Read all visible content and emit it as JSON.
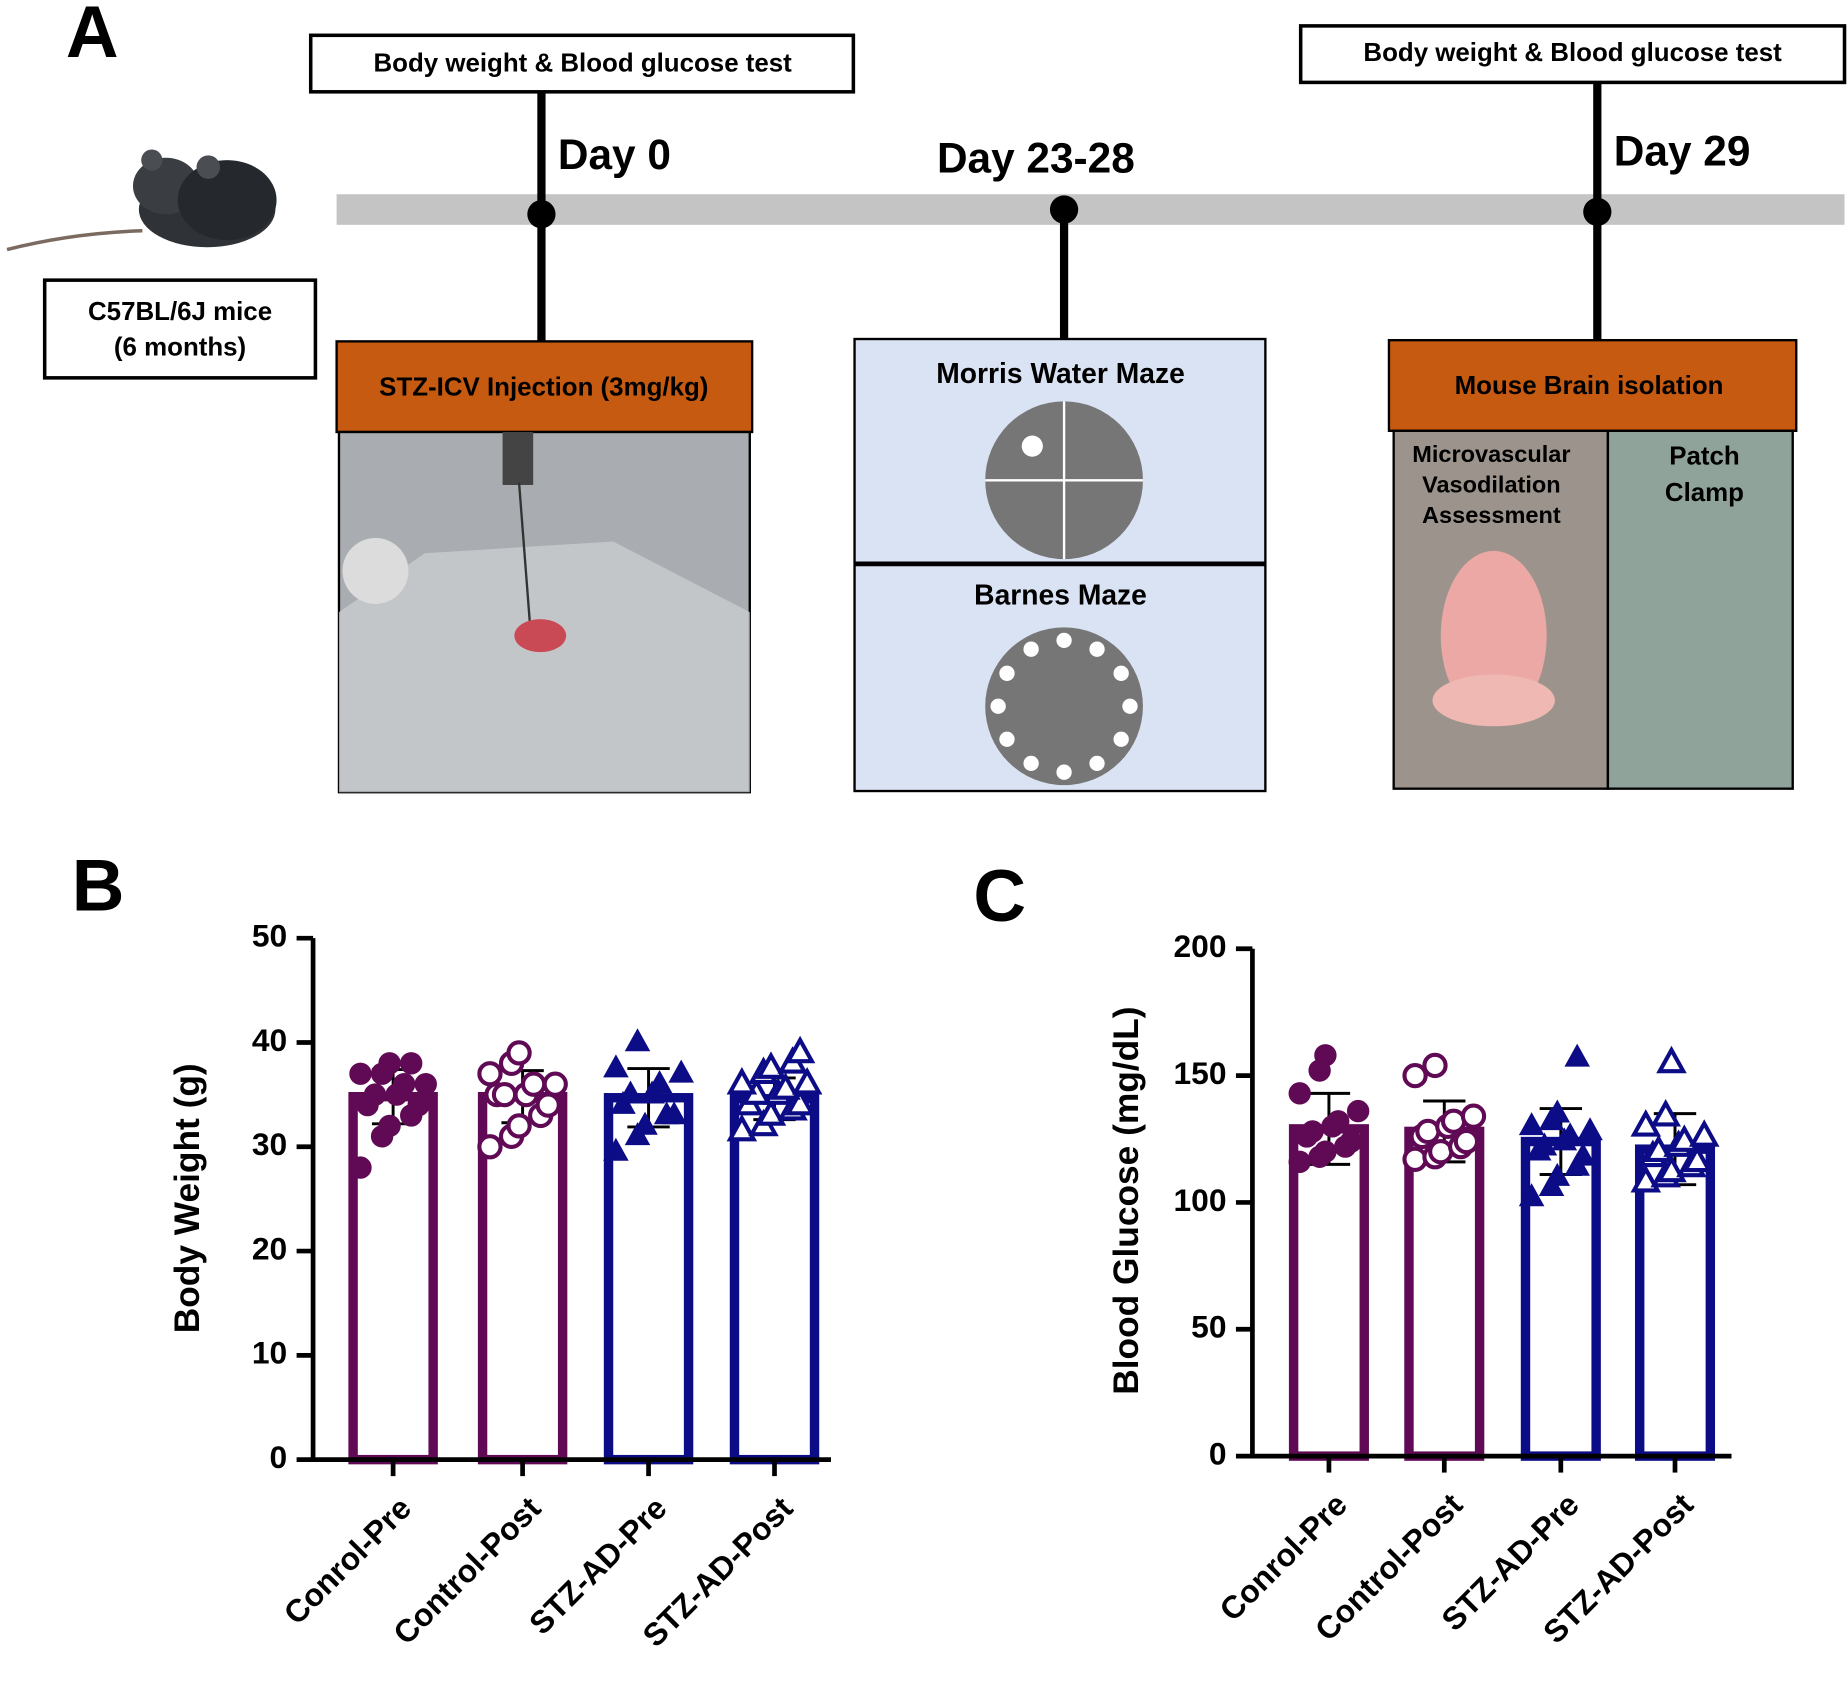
{
  "panel_a": {
    "label": "A",
    "mouse_box": [
      "C57BL/6J mice",
      "(6 months)"
    ],
    "test_box_1": "Body weight & Blood glucose test",
    "test_box_2": "Body weight & Blood glucose test",
    "day_0": "Day 0",
    "day_23": "Day 23-28",
    "day_29": "Day 29",
    "injection": "STZ-ICV Injection (3mg/kg)",
    "morris": "Morris Water Maze",
    "barnes": "Barnes Maze",
    "isolation": "Mouse Brain isolation",
    "vasodilation": [
      "Microvascular",
      "Vasodilation",
      "Assessment"
    ],
    "patch": [
      "Patch",
      "Clamp"
    ]
  },
  "chart_data": [
    {
      "type": "bar",
      "label": "B",
      "ylabel": "Body Weight (g)",
      "categories": [
        "Conrol-Pre",
        "Control-Post",
        "STZ-AD-Pre",
        "STZ-AD-Post"
      ],
      "values": [
        34.8,
        34.8,
        34.7,
        34.6
      ],
      "errors": [
        2.6,
        2.5,
        2.8,
        2.0
      ],
      "colors": [
        "#600a55",
        "#600a55",
        "#0c0c86",
        "#0c0c86"
      ],
      "markers": [
        "circle-filled",
        "circle-open",
        "triangle-filled",
        "triangle-open"
      ],
      "points": [
        [
          28,
          31,
          32,
          33,
          34,
          34,
          35,
          35,
          36,
          36,
          37,
          37,
          38,
          38
        ],
        [
          30,
          31,
          32,
          33,
          34,
          35,
          35,
          35,
          36,
          36,
          37,
          38,
          39
        ],
        [
          29.5,
          31,
          32,
          33,
          33,
          34,
          35,
          35,
          36,
          37,
          37.5,
          40
        ],
        [
          31.5,
          32,
          33,
          33.5,
          34,
          34,
          35,
          35,
          35.5,
          36,
          36,
          37,
          37.5,
          38,
          39
        ]
      ],
      "ylim": [
        0,
        50
      ],
      "yticks": [
        0,
        10,
        20,
        30,
        40,
        50
      ]
    },
    {
      "type": "bar",
      "label": "C",
      "ylabel": "Blood Glucose (mg/dL)",
      "categories": [
        "Conrol-Pre",
        "Control-Post",
        "STZ-AD-Pre",
        "STZ-AD-Post"
      ],
      "values": [
        129,
        128,
        124,
        121
      ],
      "errors": [
        14,
        12,
        13,
        14
      ],
      "colors": [
        "#600a55",
        "#600a55",
        "#0c0c86",
        "#0c0c86"
      ],
      "markers": [
        "circle-filled",
        "circle-open",
        "triangle-filled",
        "triangle-open"
      ],
      "points": [
        [
          116,
          118,
          120,
          122,
          124,
          126,
          128,
          130,
          132,
          136,
          143,
          152,
          158
        ],
        [
          117,
          118,
          120,
          122,
          124,
          126,
          128,
          130,
          132,
          134,
          150,
          154
        ],
        [
          102,
          106,
          110,
          114,
          118,
          120,
          122,
          124,
          126,
          128,
          130,
          132,
          135,
          157
        ],
        [
          108,
          110,
          112,
          114,
          116,
          118,
          120,
          122,
          124,
          126,
          130,
          134,
          155
        ]
      ],
      "ylim": [
        0,
        200
      ],
      "yticks": [
        0,
        50,
        100,
        150,
        200
      ]
    }
  ]
}
